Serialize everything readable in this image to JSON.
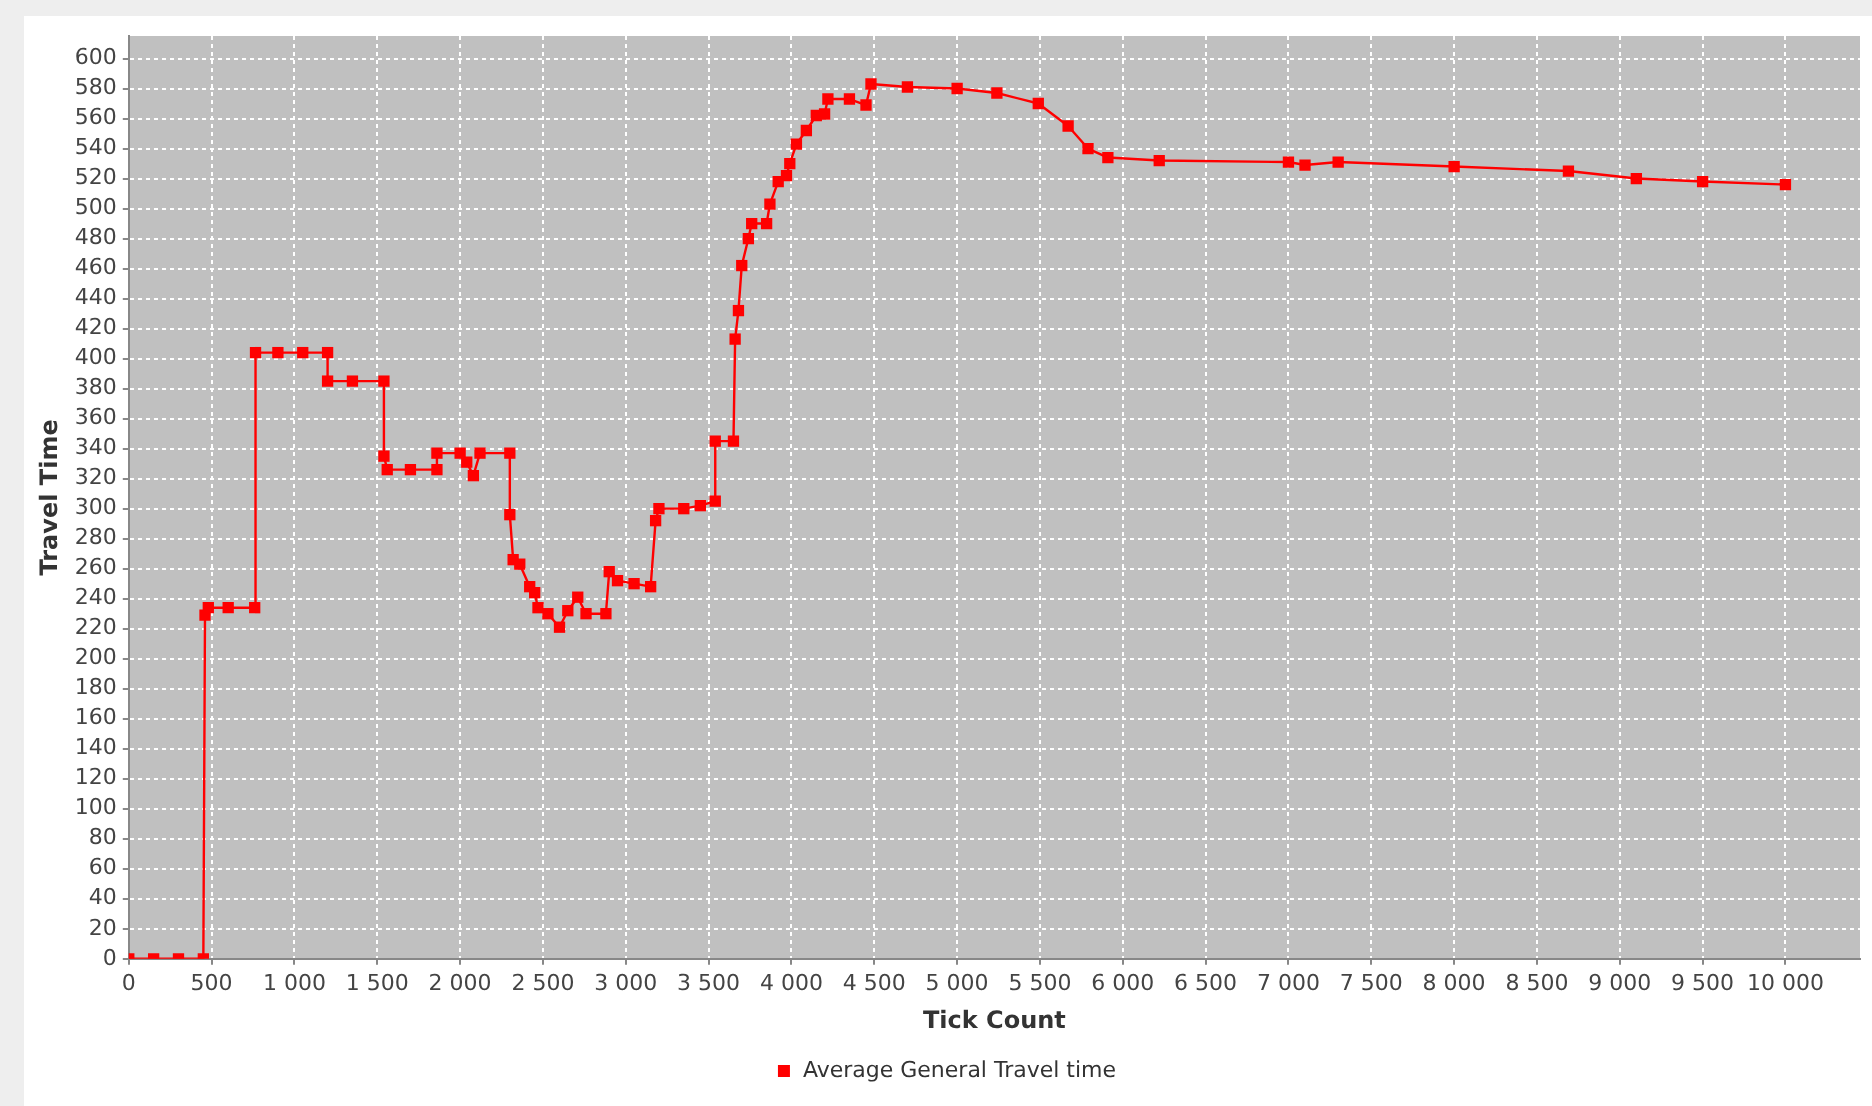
{
  "chart_data": {
    "type": "line",
    "xlabel": "Tick Count",
    "ylabel": "Travel Time",
    "x": [
      0,
      150,
      300,
      450,
      460,
      480,
      600,
      760,
      765,
      900,
      1050,
      1200,
      1200,
      1350,
      1540,
      1540,
      1560,
      1700,
      1860,
      1860,
      2000,
      2040,
      2080,
      2120,
      2300,
      2300,
      2320,
      2360,
      2420,
      2450,
      2470,
      2530,
      2600,
      2650,
      2710,
      2760,
      2880,
      2900,
      2950,
      3050,
      3150,
      3180,
      3200,
      3350,
      3450,
      3540,
      3540,
      3650,
      3660,
      3680,
      3700,
      3740,
      3760,
      3850,
      3870,
      3920,
      3970,
      3990,
      4030,
      4090,
      4150,
      4200,
      4220,
      4350,
      4450,
      4480,
      4700,
      5000,
      5240,
      5490,
      5670,
      5790,
      5910,
      6220,
      7000,
      7100,
      7300,
      8000,
      8690,
      9100,
      9500,
      10000
    ],
    "series": [
      {
        "name": "Average General Travel time",
        "color": "#ff0000",
        "values": [
          0,
          0,
          0,
          0,
          229,
          234,
          234,
          234,
          404,
          404,
          404,
          404,
          385,
          385,
          385,
          335,
          326,
          326,
          326,
          337,
          337,
          331,
          322,
          337,
          337,
          296,
          266,
          263,
          248,
          244,
          234,
          230,
          221,
          232,
          241,
          230,
          230,
          258,
          252,
          250,
          248,
          292,
          300,
          300,
          302,
          305,
          345,
          345,
          413,
          432,
          462,
          480,
          490,
          490,
          503,
          518,
          522,
          530,
          543,
          552,
          562,
          563,
          573,
          573,
          569,
          583,
          581,
          580,
          577,
          570,
          555,
          540,
          534,
          532,
          531,
          529,
          531,
          528,
          525,
          520,
          518,
          516
        ]
      }
    ],
    "xlim": [
      0,
      10450
    ],
    "ylim": [
      0,
      615
    ],
    "xticks": [
      0,
      {
        "value": 500,
        "label": "500"
      },
      {
        "value": 1000,
        "label": "1 000"
      },
      {
        "value": 1500,
        "label": "1 500"
      },
      {
        "value": 2000,
        "label": "2 000"
      },
      {
        "value": 2500,
        "label": "2 500"
      },
      {
        "value": 3000,
        "label": "3 000"
      },
      {
        "value": 3500,
        "label": "3 500"
      },
      {
        "value": 4000,
        "label": "4 000"
      },
      {
        "value": 4500,
        "label": "4 500"
      },
      {
        "value": 5000,
        "label": "5 000"
      },
      {
        "value": 5500,
        "label": "5 500"
      },
      {
        "value": 6000,
        "label": "6 000"
      },
      {
        "value": 6500,
        "label": "6 500"
      },
      {
        "value": 7000,
        "label": "7 000"
      },
      {
        "value": 7500,
        "label": "7 500"
      },
      {
        "value": 8000,
        "label": "8 000"
      },
      {
        "value": 8500,
        "label": "8 500"
      },
      {
        "value": 9000,
        "label": "9 000"
      },
      {
        "value": 9500,
        "label": "9 500"
      },
      {
        "value": 10000,
        "label": "10 000"
      }
    ],
    "yticks": [
      0,
      20,
      40,
      60,
      80,
      100,
      120,
      140,
      160,
      180,
      200,
      220,
      240,
      260,
      280,
      300,
      320,
      340,
      360,
      380,
      400,
      420,
      440,
      460,
      480,
      500,
      520,
      540,
      560,
      580,
      600
    ],
    "grid": true,
    "legend": "bottom",
    "marker": "square",
    "line_style": "solid"
  }
}
